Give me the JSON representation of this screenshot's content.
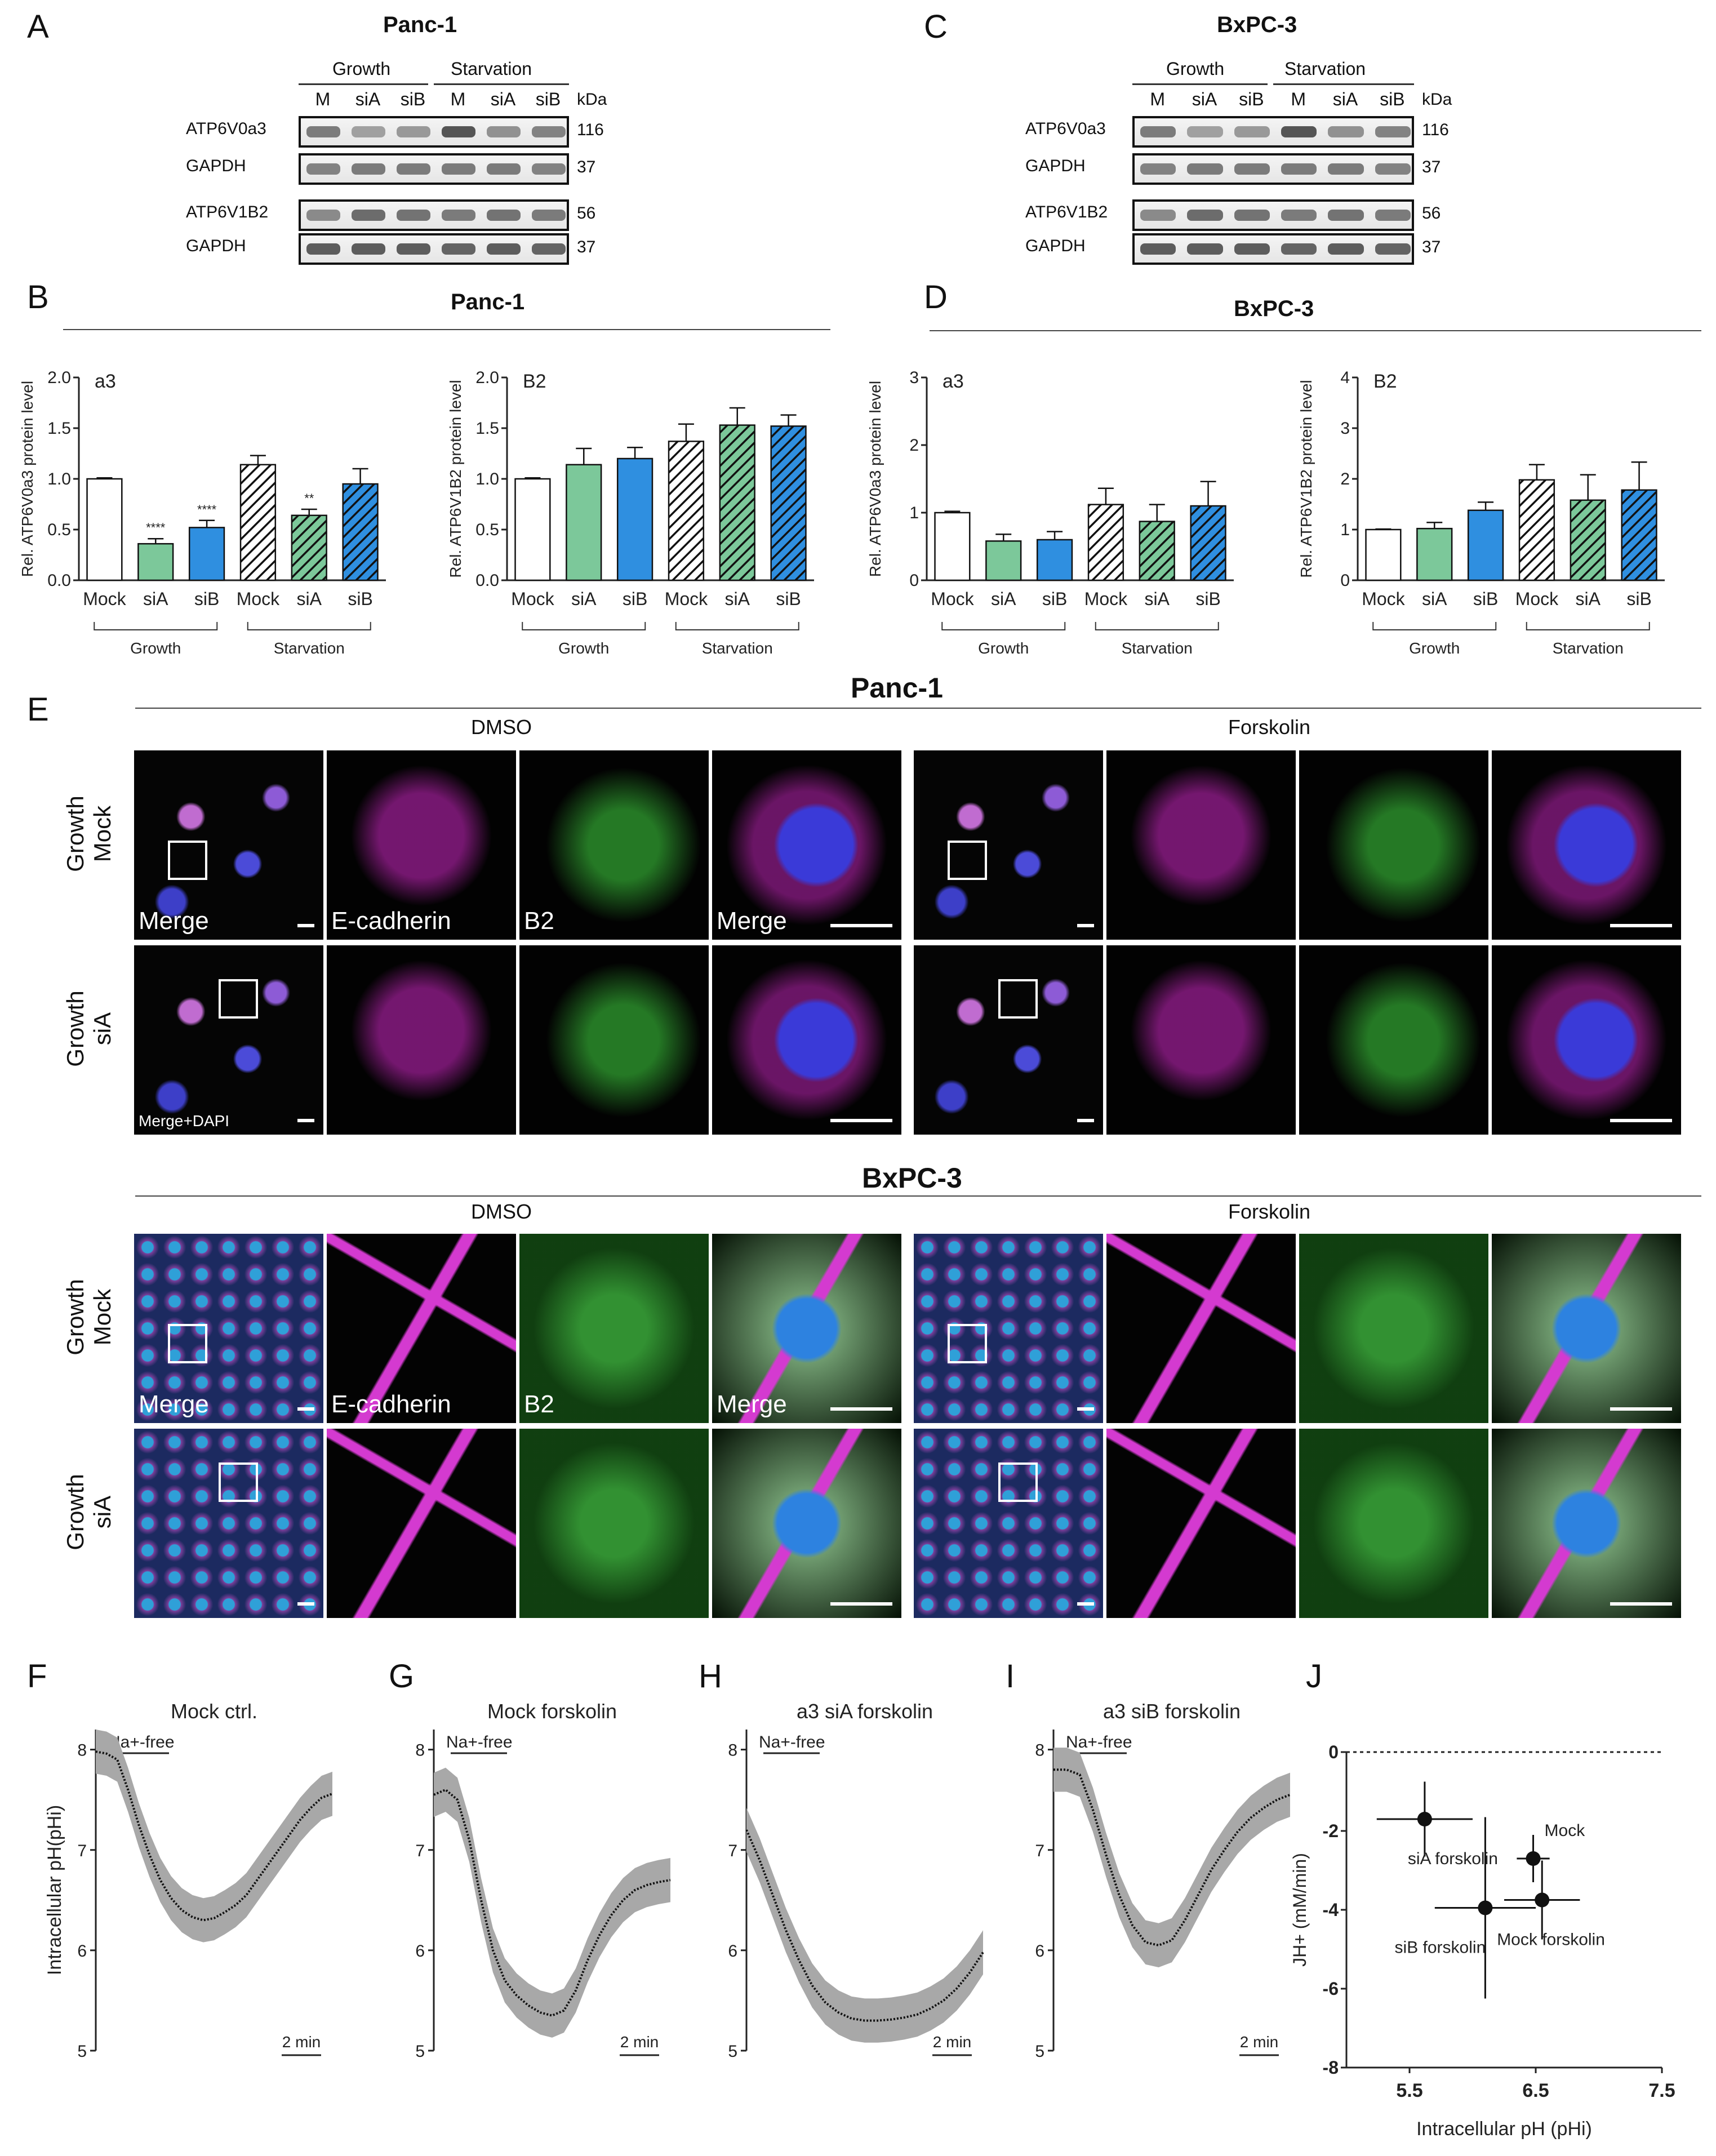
{
  "panels": {
    "A": "A",
    "B": "B",
    "C": "C",
    "D": "D",
    "E": "E",
    "F": "F",
    "G": "G",
    "H": "H",
    "I": "I",
    "J": "J"
  },
  "westerns": {
    "panc1": {
      "title": "Panc-1",
      "group_growth": "Growth",
      "group_starvation": "Starvation",
      "lanes": [
        "M",
        "siA",
        "siB",
        "M",
        "siA",
        "siB"
      ],
      "kda": "kDa",
      "blots": [
        {
          "protein": "ATP6V0a3",
          "kda": "116"
        },
        {
          "protein": "GAPDH",
          "kda": "37"
        },
        {
          "protein": "ATP6V1B2",
          "kda": "56"
        },
        {
          "protein": "GAPDH",
          "kda": "37"
        }
      ]
    },
    "bxpc3": {
      "title": "BxPC-3",
      "group_growth": "Growth",
      "group_starvation": "Starvation",
      "lanes": [
        "M",
        "siA",
        "siB",
        "M",
        "siA",
        "siB"
      ],
      "kda": "kDa",
      "blots": [
        {
          "protein": "ATP6V0a3",
          "kda": "116"
        },
        {
          "protein": "GAPDH",
          "kda": "37"
        },
        {
          "protein": "ATP6V1B2",
          "kda": "56"
        },
        {
          "protein": "GAPDH",
          "kda": "37"
        }
      ]
    }
  },
  "section_titles": {
    "B": "Panc-1",
    "D": "BxPC-3",
    "E_panc": "Panc-1",
    "E_bxpc": "BxPC-3"
  },
  "chart_data": [
    {
      "id": "B-a3",
      "type": "bar",
      "panel_label": "a3",
      "ylabel": "Rel. ATP6V0a3 protein level",
      "ylim": [
        0,
        2.0
      ],
      "yticks": [
        "0.0",
        "0.5",
        "1.0",
        "1.5",
        "2.0"
      ],
      "categories": [
        "Mock",
        "siA",
        "siB",
        "Mock",
        "siA",
        "siB"
      ],
      "groups": [
        "Growth",
        "Starvation"
      ],
      "values": [
        1.0,
        0.36,
        0.52,
        1.14,
        0.64,
        0.95
      ],
      "errors": [
        0.01,
        0.05,
        0.07,
        0.09,
        0.06,
        0.15
      ],
      "significance": [
        "",
        "****",
        "****",
        "",
        "**",
        ""
      ],
      "colors": [
        "#ffffff",
        "#7cc89a",
        "#2f8fe0",
        "#ffffff",
        "#7cc89a",
        "#2f8fe0"
      ],
      "hatched": [
        false,
        false,
        false,
        true,
        true,
        true
      ]
    },
    {
      "id": "B-B2",
      "type": "bar",
      "panel_label": "B2",
      "ylabel": "Rel. ATP6V1B2 protein level",
      "ylim": [
        0,
        2.0
      ],
      "yticks": [
        "0.0",
        "0.5",
        "1.0",
        "1.5",
        "2.0"
      ],
      "categories": [
        "Mock",
        "siA",
        "siB",
        "Mock",
        "siA",
        "siB"
      ],
      "groups": [
        "Growth",
        "Starvation"
      ],
      "values": [
        1.0,
        1.14,
        1.2,
        1.37,
        1.53,
        1.52
      ],
      "errors": [
        0.01,
        0.16,
        0.11,
        0.17,
        0.17,
        0.11
      ],
      "significance": [
        "",
        "",
        "",
        "",
        "",
        ""
      ],
      "colors": [
        "#ffffff",
        "#7cc89a",
        "#2f8fe0",
        "#ffffff",
        "#7cc89a",
        "#2f8fe0"
      ],
      "hatched": [
        false,
        false,
        false,
        true,
        true,
        true
      ]
    },
    {
      "id": "D-a3",
      "type": "bar",
      "panel_label": "a3",
      "ylabel": "Rel. ATP6V0a3 protein level",
      "ylim": [
        0,
        3
      ],
      "yticks": [
        "0",
        "1",
        "2",
        "3"
      ],
      "categories": [
        "Mock",
        "siA",
        "siB",
        "Mock",
        "siA",
        "siB"
      ],
      "groups": [
        "Growth",
        "Starvation"
      ],
      "values": [
        1.0,
        0.58,
        0.6,
        1.12,
        0.87,
        1.1
      ],
      "errors": [
        0.02,
        0.1,
        0.12,
        0.24,
        0.25,
        0.36
      ],
      "significance": [
        "",
        "",
        "",
        "",
        "",
        ""
      ],
      "colors": [
        "#ffffff",
        "#7cc89a",
        "#2f8fe0",
        "#ffffff",
        "#7cc89a",
        "#2f8fe0"
      ],
      "hatched": [
        false,
        false,
        false,
        true,
        true,
        true
      ]
    },
    {
      "id": "D-B2",
      "type": "bar",
      "panel_label": "B2",
      "ylabel": "Rel. ATP6V1B2 protein level",
      "ylim": [
        0,
        4
      ],
      "yticks": [
        "0",
        "1",
        "2",
        "3",
        "4"
      ],
      "categories": [
        "Mock",
        "siA",
        "siB",
        "Mock",
        "siA",
        "siB"
      ],
      "groups": [
        "Growth",
        "Starvation"
      ],
      "values": [
        1.0,
        1.02,
        1.38,
        1.98,
        1.58,
        1.78
      ],
      "errors": [
        0.01,
        0.12,
        0.16,
        0.3,
        0.5,
        0.55
      ],
      "significance": [
        "",
        "",
        "",
        "",
        "",
        ""
      ],
      "colors": [
        "#ffffff",
        "#7cc89a",
        "#2f8fe0",
        "#ffffff",
        "#7cc89a",
        "#2f8fe0"
      ],
      "hatched": [
        false,
        false,
        false,
        true,
        true,
        true
      ]
    },
    {
      "id": "F",
      "type": "line",
      "title": "Mock ctrl.",
      "ylabel": "Intracellular pH(pHi)",
      "ylim": [
        5,
        8.2
      ],
      "yticks": [
        "5",
        "6",
        "7",
        "8"
      ],
      "annotation": "Na+-free",
      "scalebar": "2 min",
      "y": [
        7.98,
        7.96,
        7.9,
        7.6,
        7.25,
        6.95,
        6.7,
        6.52,
        6.4,
        6.33,
        6.3,
        6.32,
        6.38,
        6.45,
        6.55,
        6.7,
        6.85,
        7.0,
        7.15,
        7.3,
        7.42,
        7.52,
        7.56
      ]
    },
    {
      "id": "G",
      "type": "line",
      "title": "Mock forskolin",
      "ylabel": "",
      "ylim": [
        5,
        8.2
      ],
      "yticks": [
        "5",
        "6",
        "7",
        "8"
      ],
      "annotation": "Na+-free",
      "scalebar": "2 min",
      "y": [
        7.55,
        7.6,
        7.5,
        7.1,
        6.5,
        6.0,
        5.7,
        5.55,
        5.45,
        5.38,
        5.35,
        5.4,
        5.6,
        5.9,
        6.15,
        6.35,
        6.5,
        6.6,
        6.65,
        6.68,
        6.7
      ]
    },
    {
      "id": "H",
      "type": "line",
      "title": "a3 siA forskolin",
      "ylabel": "",
      "ylim": [
        5,
        8.2
      ],
      "yticks": [
        "5",
        "6",
        "7",
        "8"
      ],
      "annotation": "Na+-free",
      "scalebar": "2 min",
      "y": [
        7.2,
        6.9,
        6.55,
        6.2,
        5.9,
        5.65,
        5.48,
        5.38,
        5.32,
        5.3,
        5.3,
        5.31,
        5.33,
        5.36,
        5.42,
        5.5,
        5.62,
        5.78,
        5.98
      ]
    },
    {
      "id": "I",
      "type": "line",
      "title": "a3 siB forskolin",
      "ylabel": "",
      "ylim": [
        5,
        8.2
      ],
      "yticks": [
        "5",
        "6",
        "7",
        "8"
      ],
      "annotation": "Na+-free",
      "scalebar": "2 min",
      "y": [
        7.8,
        7.8,
        7.75,
        7.4,
        6.95,
        6.55,
        6.25,
        6.08,
        6.05,
        6.1,
        6.3,
        6.55,
        6.8,
        7.0,
        7.18,
        7.32,
        7.42,
        7.5,
        7.55
      ]
    },
    {
      "id": "J",
      "type": "scatter",
      "xlabel": "Intracellular pH (pHi)",
      "ylabel": "JH+ (mM/min)",
      "xlim": [
        5,
        7.5
      ],
      "ylim": [
        -8,
        0
      ],
      "xticks": [
        "5.5",
        "6.5",
        "7.5"
      ],
      "yticks": [
        "0",
        "-2",
        "-4",
        "-6",
        "-8"
      ],
      "points": [
        {
          "label": "Mock",
          "x": 6.48,
          "y": -2.7,
          "xerr": 0.13,
          "yerr": 0.6
        },
        {
          "label": "siA forskolin",
          "x": 5.62,
          "y": -1.7,
          "xerr": 0.38,
          "yerr": 0.95
        },
        {
          "label": "siB forskolin",
          "x": 6.1,
          "y": -3.95,
          "xerr": 0.4,
          "yerr": 2.3
        },
        {
          "label": "Mock forskolin",
          "x": 6.55,
          "y": -3.75,
          "xerr": 0.3,
          "yerr": 1.0
        }
      ]
    }
  ],
  "E": {
    "conditions": [
      "DMSO",
      "Forskolin"
    ],
    "rows": [
      [
        "Growth",
        "Mock"
      ],
      [
        "Growth",
        "siA"
      ]
    ],
    "tile_labels": [
      "Merge",
      "E-cadherin",
      "B2",
      "Merge"
    ],
    "dapi_label": "Merge+DAPI"
  }
}
